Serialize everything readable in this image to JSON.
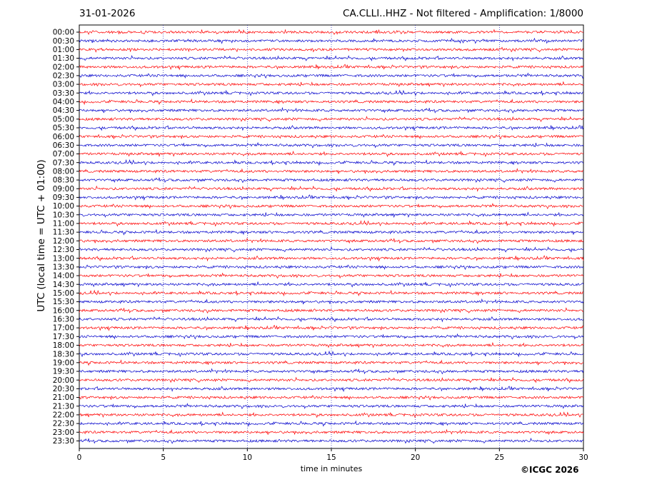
{
  "header": {
    "date": "31-01-2026",
    "title": "CA.CLLI..HHZ - Not filtered - Amplification: 1/8000"
  },
  "footer": {
    "copyright": "©ICGC 2026"
  },
  "chart_data": {
    "type": "line",
    "title": "CA.CLLI..HHZ - Not filtered - Amplification: 1/8000",
    "xlabel": "time in minutes",
    "ylabel": "UTC (local time = UTC + 01:00)",
    "xlim": [
      0,
      30
    ],
    "xticks": [
      0,
      5,
      10,
      15,
      20,
      25,
      30
    ],
    "grid": "vertical dotted lines at each x tick",
    "trace_colors": [
      "#ff0000",
      "#0000cc"
    ],
    "rows": [
      "00:00",
      "00:30",
      "01:00",
      "01:30",
      "02:00",
      "02:30",
      "03:00",
      "03:30",
      "04:00",
      "04:30",
      "05:00",
      "05:30",
      "06:00",
      "06:30",
      "07:00",
      "07:30",
      "08:00",
      "08:30",
      "09:00",
      "09:30",
      "10:00",
      "10:30",
      "11:00",
      "11:30",
      "12:00",
      "12:30",
      "13:00",
      "13:30",
      "14:00",
      "14:30",
      "15:00",
      "15:30",
      "16:00",
      "16:30",
      "17:00",
      "17:30",
      "18:00",
      "18:30",
      "19:00",
      "19:30",
      "20:00",
      "20:30",
      "21:00",
      "21:30",
      "22:00",
      "22:30",
      "23:00",
      "23:30"
    ]
  }
}
